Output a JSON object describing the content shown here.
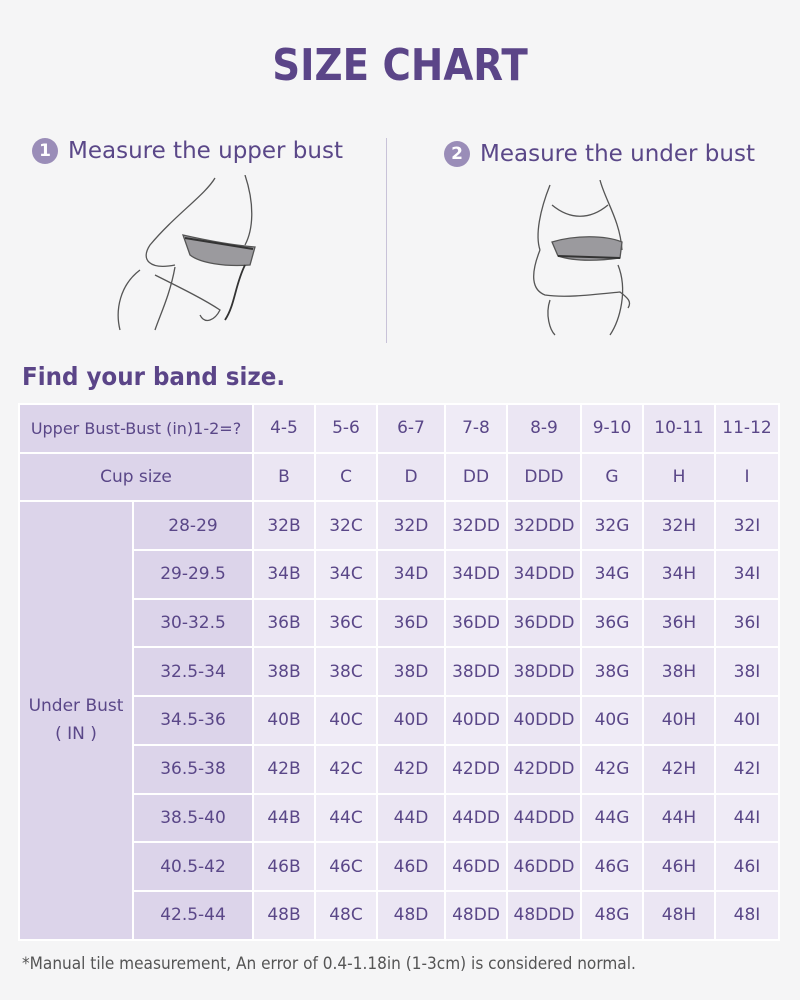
{
  "title": "SIZE CHART",
  "steps": [
    {
      "number": "1",
      "label": "Measure the upper bust"
    },
    {
      "number": "2",
      "label": "Measure the under bust"
    }
  ],
  "band_heading": "Find your band size.",
  "table": {
    "diff_header": "Upper Bust-Bust (in)1-2=?",
    "diffs": [
      "4-5",
      "5-6",
      "6-7",
      "7-8",
      "8-9",
      "9-10",
      "10-11",
      "11-12"
    ],
    "cup_header": "Cup size",
    "cups": [
      "B",
      "C",
      "D",
      "DD",
      "DDD",
      "G",
      "H",
      "I"
    ],
    "under_bust_label": "Under Bust",
    "under_bust_unit": "( IN )",
    "rows": [
      {
        "range": "28-29",
        "sizes": [
          "32B",
          "32C",
          "32D",
          "32DD",
          "32DDD",
          "32G",
          "32H",
          "32I"
        ]
      },
      {
        "range": "29-29.5",
        "sizes": [
          "34B",
          "34C",
          "34D",
          "34DD",
          "34DDD",
          "34G",
          "34H",
          "34I"
        ]
      },
      {
        "range": "30-32.5",
        "sizes": [
          "36B",
          "36C",
          "36D",
          "36DD",
          "36DDD",
          "36G",
          "36H",
          "36I"
        ]
      },
      {
        "range": "32.5-34",
        "sizes": [
          "38B",
          "38C",
          "38D",
          "38DD",
          "38DDD",
          "38G",
          "38H",
          "38I"
        ]
      },
      {
        "range": "34.5-36",
        "sizes": [
          "40B",
          "40C",
          "40D",
          "40DD",
          "40DDD",
          "40G",
          "40H",
          "40I"
        ]
      },
      {
        "range": "36.5-38",
        "sizes": [
          "42B",
          "42C",
          "42D",
          "42DD",
          "42DDD",
          "42G",
          "42H",
          "42I"
        ]
      },
      {
        "range": "38.5-40",
        "sizes": [
          "44B",
          "44C",
          "44D",
          "44DD",
          "44DDD",
          "44G",
          "44H",
          "44I"
        ]
      },
      {
        "range": "40.5-42",
        "sizes": [
          "46B",
          "46C",
          "46D",
          "46DD",
          "46DDD",
          "46G",
          "46H",
          "46I"
        ]
      },
      {
        "range": "42.5-44",
        "sizes": [
          "48B",
          "48C",
          "48D",
          "48DD",
          "48DDD",
          "48G",
          "48H",
          "48I"
        ]
      }
    ]
  },
  "footnote": "*Manual tile measurement, An error of 0.4-1.18in (1-3cm) is considered normal.",
  "colors": {
    "accent": "#5b4588",
    "header_cell": "#dcd4ea",
    "data_cell": "#ebe6f3"
  }
}
